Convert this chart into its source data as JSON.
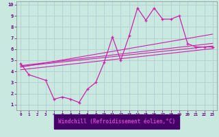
{
  "xlabel": "Windchill (Refroidissement éolien,°C)",
  "xlim": [
    -0.5,
    23.5
  ],
  "ylim": [
    0.5,
    10.3
  ],
  "xticks": [
    0,
    1,
    2,
    3,
    4,
    5,
    6,
    7,
    8,
    9,
    10,
    11,
    12,
    13,
    14,
    15,
    16,
    17,
    18,
    19,
    20,
    21,
    22,
    23
  ],
  "yticks": [
    1,
    2,
    3,
    4,
    5,
    6,
    7,
    8,
    9,
    10
  ],
  "bg_color": "#c8e8e0",
  "grid_color": "#aacccc",
  "line_color": "#cc22aa",
  "series": {
    "main": {
      "x": [
        0,
        1,
        3,
        4,
        5,
        6,
        7,
        8,
        9,
        10,
        11,
        12,
        13,
        14,
        15,
        16,
        17,
        18,
        19,
        20,
        21,
        22,
        23
      ],
      "y": [
        4.7,
        3.7,
        3.2,
        1.5,
        1.7,
        1.5,
        1.2,
        2.4,
        3.0,
        4.8,
        7.1,
        5.0,
        7.2,
        9.7,
        8.6,
        9.7,
        8.7,
        8.7,
        9.0,
        6.5,
        6.2,
        6.2,
        6.2
      ]
    },
    "line1": {
      "x": [
        0,
        23
      ],
      "y": [
        4.15,
        6.05
      ]
    },
    "line2": {
      "x": [
        0,
        23
      ],
      "y": [
        4.38,
        7.35
      ]
    },
    "line3": {
      "x": [
        0,
        23
      ],
      "y": [
        4.52,
        6.52
      ]
    },
    "line4": {
      "x": [
        0,
        23
      ],
      "y": [
        4.45,
        6.28
      ]
    }
  },
  "xlabel_bg": "#440066",
  "xlabel_color": "#cc44cc",
  "tick_color": "#660077"
}
